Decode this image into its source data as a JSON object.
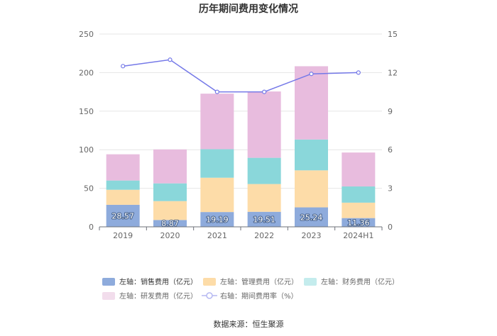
{
  "chart_data": {
    "type": "bar",
    "title": "历年期间费用变化情况",
    "categories": [
      "2019",
      "2020",
      "2021",
      "2022",
      "2023",
      "2024H1"
    ],
    "stacked": true,
    "left_axis": {
      "min": 0,
      "max": 250,
      "ticks": [
        "0",
        "50",
        "100",
        "150",
        "200",
        "250"
      ]
    },
    "right_axis": {
      "min": 0,
      "max": 15,
      "ticks": [
        "0",
        "3",
        "6",
        "9",
        "12",
        "15"
      ]
    },
    "series": [
      {
        "name": "左轴：销售费用（亿元）",
        "axis": "left",
        "color": "#8eabdc",
        "values": [
          28.57,
          8.87,
          19.19,
          19.51,
          25.24,
          11.36
        ],
        "labels": [
          "28.57",
          "8.87",
          "19.19",
          "19.51",
          "25.24",
          "11.36"
        ]
      },
      {
        "name": "左轴：管理费用（亿元）",
        "axis": "left",
        "color": "#fddca8",
        "values": [
          19.5,
          24.5,
          44.5,
          36.0,
          48.0,
          20.0
        ]
      },
      {
        "name": "左轴：财务费用（亿元）",
        "axis": "left",
        "color": "#8ad7da",
        "values": [
          12.0,
          23.0,
          37.0,
          34.0,
          40.0,
          21.0
        ]
      },
      {
        "name": "左轴：研发费用（亿元）",
        "axis": "left",
        "color": "#e8bcde",
        "values": [
          34.0,
          44.0,
          72.0,
          86.0,
          95.0,
          44.0
        ]
      },
      {
        "name": "右轴：期间费用率（%）",
        "axis": "right",
        "type": "line",
        "color": "#7579e8",
        "values": [
          12.5,
          13.0,
          10.5,
          10.5,
          11.9,
          12.0
        ]
      }
    ]
  },
  "legend": {
    "items": [
      {
        "label": "左轴：销售费用（亿元）",
        "color": "#8eabdc",
        "kind": "rect",
        "active": true
      },
      {
        "label": "左轴：管理费用（亿元）",
        "color": "#fddca8",
        "kind": "rect",
        "active": false
      },
      {
        "label": "左轴：财务费用（亿元）",
        "color": "#c4eced",
        "kind": "rect",
        "active": false
      },
      {
        "label": "左轴：研发费用（亿元）",
        "color": "#f2ddec",
        "kind": "rect",
        "active": false
      },
      {
        "label": "右轴：期间费用率（%）",
        "color": "#b5b8f2",
        "kind": "line",
        "active": false
      }
    ]
  },
  "source": "数据来源：恒生聚源"
}
